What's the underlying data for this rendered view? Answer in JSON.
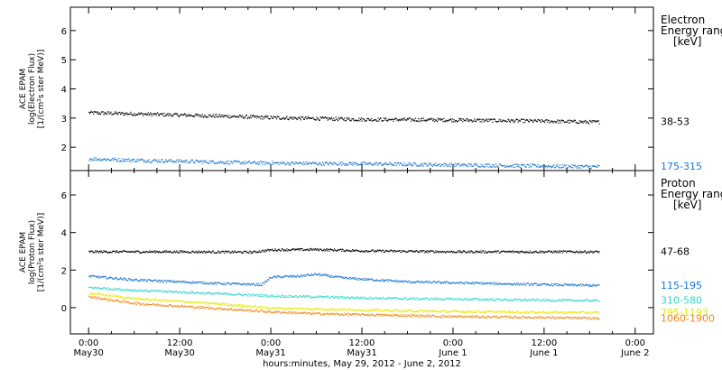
{
  "chart_data": [
    {
      "type": "scatter",
      "panel": "electron",
      "ylabel_lines": [
        "ACE EPAM",
        "log(Electron Flux)",
        "[1/(cm²s ster MeV)]"
      ],
      "ylim": [
        1.2,
        6.8
      ],
      "yticks": [
        2,
        3,
        4,
        5,
        6
      ],
      "legend_title": [
        "Electron",
        "Energy ranges",
        "[keV]"
      ],
      "series": [
        {
          "name": "38-53",
          "color": "#000000",
          "points": [
            [
              0,
              3.2
            ],
            [
              0.25,
              3.16
            ],
            [
              0.5,
              3.12
            ],
            [
              0.75,
              3.08
            ],
            [
              1,
              3.03
            ],
            [
              1.25,
              3.0
            ],
            [
              1.5,
              2.97
            ],
            [
              1.75,
              2.96
            ],
            [
              2,
              2.95
            ],
            [
              2.25,
              2.93
            ],
            [
              2.5,
              2.91
            ],
            [
              2.75,
              2.88
            ],
            [
              2.8,
              2.88
            ]
          ]
        },
        {
          "name": "175-315",
          "color": "#1976d2",
          "points": [
            [
              0,
              1.62
            ],
            [
              0.25,
              1.57
            ],
            [
              0.5,
              1.54
            ],
            [
              0.75,
              1.5
            ],
            [
              1,
              1.47
            ],
            [
              1.25,
              1.46
            ],
            [
              1.5,
              1.45
            ],
            [
              1.75,
              1.43
            ],
            [
              2,
              1.41
            ],
            [
              2.25,
              1.39
            ],
            [
              2.5,
              1.37
            ],
            [
              2.75,
              1.35
            ],
            [
              2.8,
              1.35
            ]
          ]
        }
      ]
    },
    {
      "type": "scatter",
      "panel": "proton",
      "ylabel_lines": [
        "ACE EPAM",
        "log(Proton Flux)",
        "[1/(cm²s ster MeV)]"
      ],
      "ylim": [
        -1.4,
        7.3
      ],
      "yticks": [
        0,
        2,
        4,
        6
      ],
      "legend_title": [
        "Proton",
        "Energy ranges",
        "[keV]"
      ],
      "series": [
        {
          "name": "47-68",
          "color": "#000000",
          "points": [
            [
              0,
              3.0
            ],
            [
              0.5,
              3.0
            ],
            [
              0.9,
              2.98
            ],
            [
              1.0,
              3.1
            ],
            [
              1.25,
              3.12
            ],
            [
              1.5,
              3.05
            ],
            [
              2,
              3.0
            ],
            [
              2.5,
              3.0
            ],
            [
              2.8,
              3.0
            ]
          ]
        },
        {
          "name": "115-195",
          "color": "#1976d2",
          "points": [
            [
              0,
              1.7
            ],
            [
              0.25,
              1.5
            ],
            [
              0.5,
              1.4
            ],
            [
              0.75,
              1.3
            ],
            [
              0.95,
              1.25
            ],
            [
              1.0,
              1.65
            ],
            [
              1.15,
              1.7
            ],
            [
              1.25,
              1.8
            ],
            [
              1.4,
              1.6
            ],
            [
              1.75,
              1.4
            ],
            [
              2,
              1.35
            ],
            [
              2.5,
              1.25
            ],
            [
              2.8,
              1.2
            ]
          ]
        },
        {
          "name": "310-580",
          "color": "#33d6cf",
          "points": [
            [
              0,
              1.1
            ],
            [
              0.25,
              0.95
            ],
            [
              0.5,
              0.85
            ],
            [
              0.75,
              0.75
            ],
            [
              1.0,
              0.65
            ],
            [
              1.25,
              0.6
            ],
            [
              1.5,
              0.55
            ],
            [
              1.75,
              0.5
            ],
            [
              2,
              0.48
            ],
            [
              2.5,
              0.42
            ],
            [
              2.8,
              0.4
            ]
          ]
        },
        {
          "name": "795-1193",
          "color": "#e8e800",
          "points": [
            [
              0,
              0.8
            ],
            [
              0.25,
              0.5
            ],
            [
              0.5,
              0.35
            ],
            [
              0.75,
              0.2
            ],
            [
              1.0,
              0.0
            ],
            [
              1.25,
              -0.05
            ],
            [
              1.5,
              -0.1
            ],
            [
              1.75,
              -0.15
            ],
            [
              2,
              -0.18
            ],
            [
              2.5,
              -0.22
            ],
            [
              2.8,
              -0.25
            ]
          ]
        },
        {
          "name": "1060-1900",
          "color": "#f08a1c",
          "points": [
            [
              0,
              0.6
            ],
            [
              0.25,
              0.25
            ],
            [
              0.5,
              0.1
            ],
            [
              0.75,
              -0.05
            ],
            [
              1.0,
              -0.2
            ],
            [
              1.25,
              -0.3
            ],
            [
              1.5,
              -0.35
            ],
            [
              1.75,
              -0.4
            ],
            [
              2,
              -0.45
            ],
            [
              2.5,
              -0.5
            ],
            [
              2.8,
              -0.55
            ]
          ]
        }
      ]
    }
  ],
  "x_axis": {
    "range_days": [
      -0.1,
      3.1
    ],
    "ticks": [
      {
        "day": 0,
        "time": "0:00",
        "date": "May30"
      },
      {
        "day": 0.5,
        "time": "12:00",
        "date": "May30"
      },
      {
        "day": 1,
        "time": "0:00",
        "date": "May31"
      },
      {
        "day": 1.5,
        "time": "12:00",
        "date": "May31"
      },
      {
        "day": 2,
        "time": "0:00",
        "date": "June 1"
      },
      {
        "day": 2.5,
        "time": "12:00",
        "date": "June 1"
      },
      {
        "day": 3,
        "time": "0:00",
        "date": "June 2"
      }
    ],
    "xlabel": "hours:minutes, May 29, 2012 - June  2, 2012"
  },
  "colors": {
    "axes": "#000000",
    "background": "#ffffff"
  }
}
